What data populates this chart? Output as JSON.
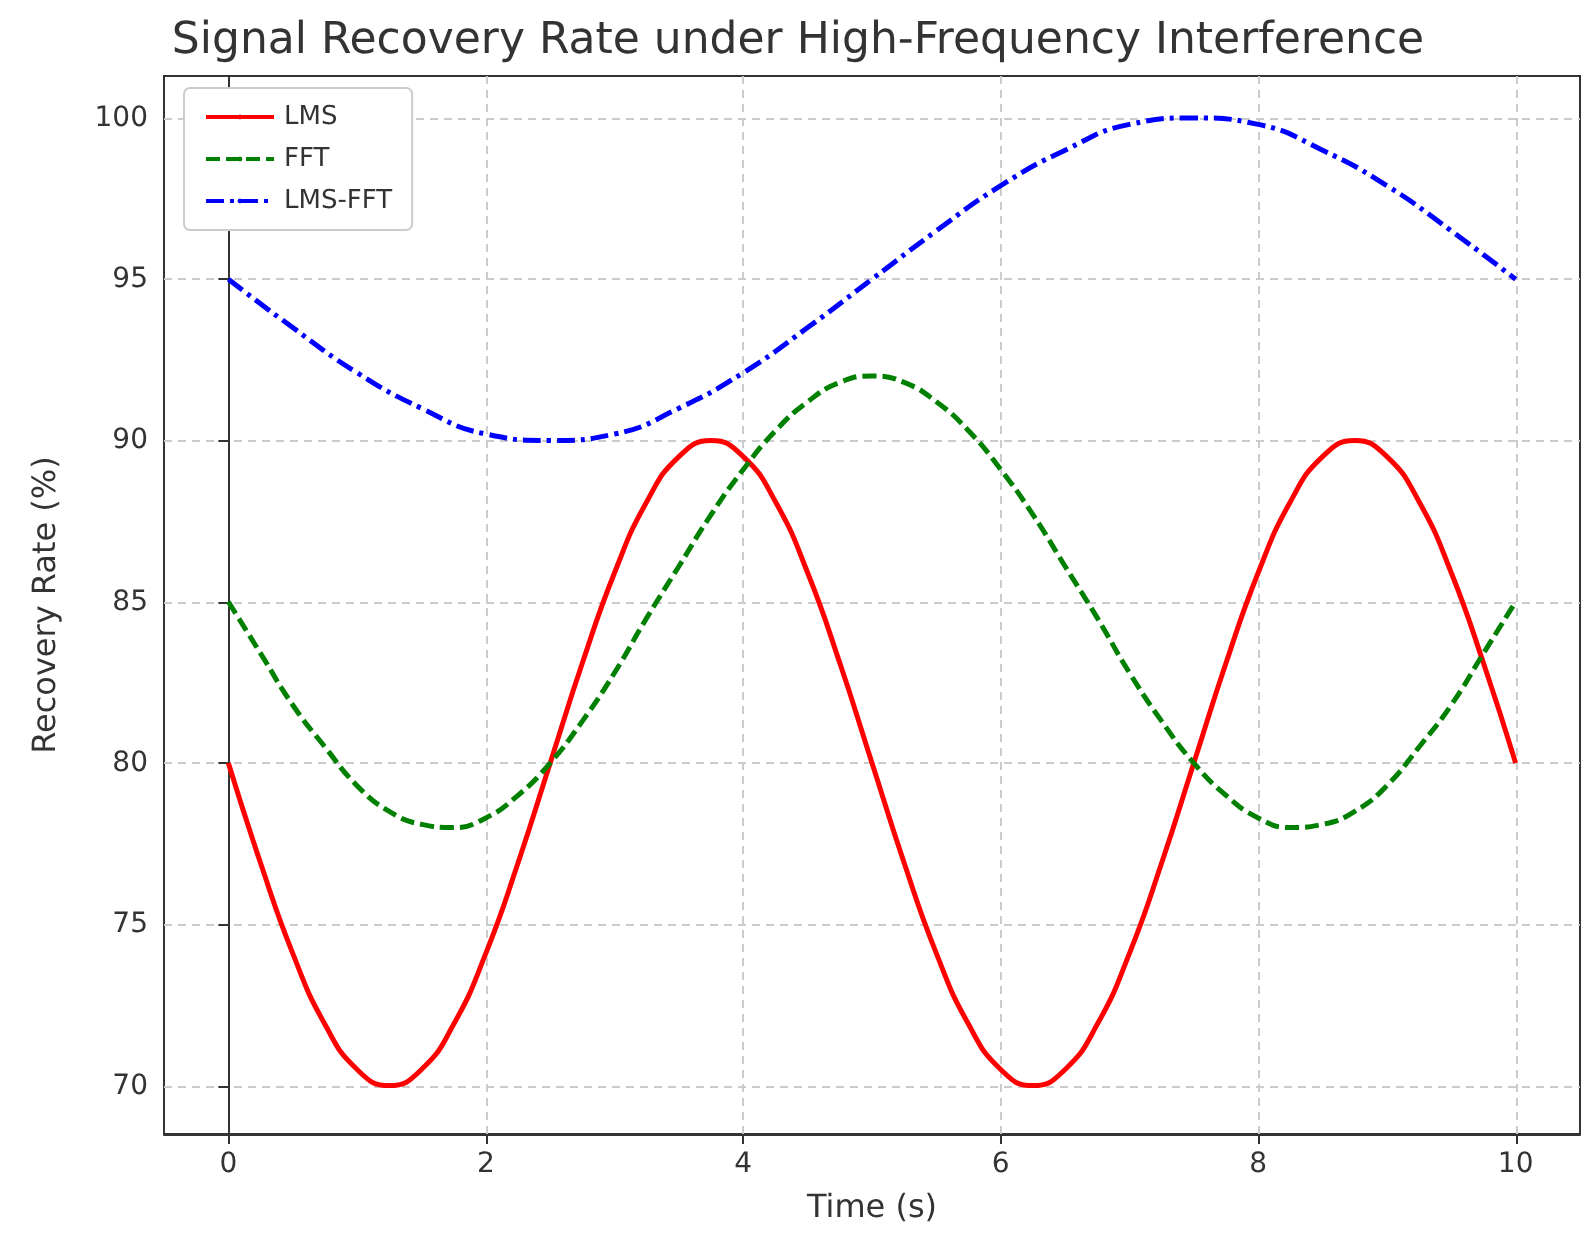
{
  "chart_data": {
    "type": "line",
    "title": "Signal Recovery Rate under High-Frequency Interference",
    "xlabel": "Time (s)",
    "ylabel": "Recovery Rate (%)",
    "xlim": [
      -0.5,
      10.5
    ],
    "xticks": [
      0,
      2,
      4,
      6,
      8,
      10
    ],
    "ylim": [
      68.5,
      101.3
    ],
    "yticks": [
      70,
      75,
      80,
      85,
      90,
      95,
      100
    ],
    "grid": true,
    "legend": "top left",
    "marker": "none",
    "series": [
      {
        "name": "LMS",
        "color": "#ff0000",
        "line_style": "solid",
        "x": [
          0,
          0.25,
          0.5,
          0.75,
          1,
          1.25,
          1.5,
          1.75,
          2,
          2.25,
          2.5,
          2.75,
          3,
          3.25,
          3.5,
          3.75,
          4,
          4.25,
          4.5,
          4.75,
          5,
          5.25,
          5.5,
          5.75,
          6,
          6.25,
          6.5,
          6.75,
          7,
          7.25,
          7.5,
          7.75,
          8,
          8.25,
          8.5,
          8.75,
          9,
          9.25,
          9.5,
          9.75,
          10
        ],
        "values": [
          80,
          76.9,
          74.1,
          71.9,
          70.5,
          70,
          70.5,
          71.9,
          74.1,
          76.9,
          80,
          83.1,
          85.9,
          88.1,
          89.5,
          90,
          89.5,
          88.1,
          85.9,
          83.1,
          80,
          76.9,
          74.1,
          71.9,
          70.5,
          70,
          70.5,
          71.9,
          74.1,
          76.9,
          80,
          83.1,
          85.9,
          88.1,
          89.5,
          90,
          89.5,
          88.1,
          85.9,
          83.1,
          80
        ]
      },
      {
        "name": "FFT",
        "color": "#008000",
        "line_style": "dashed",
        "x": [
          0,
          0.25,
          0.5,
          0.75,
          1,
          1.25,
          1.5,
          1.75,
          2,
          2.25,
          2.5,
          2.75,
          3,
          3.25,
          3.5,
          3.75,
          4,
          4.25,
          4.5,
          4.75,
          5,
          5.25,
          5.5,
          5.75,
          6,
          6.25,
          6.5,
          6.75,
          7,
          7.25,
          7.5,
          7.75,
          8,
          8.25,
          8.5,
          8.75,
          9,
          9.25,
          9.5,
          9.75,
          10
        ],
        "values": [
          85,
          83.4,
          81.8,
          80.5,
          79.3,
          78.5,
          78.1,
          78,
          78.3,
          79,
          80,
          81.3,
          82.8,
          84.5,
          86.1,
          87.7,
          89.1,
          90.3,
          91.2,
          91.8,
          92,
          91.8,
          91.2,
          90.3,
          89.1,
          87.7,
          86.1,
          84.5,
          82.8,
          81.3,
          80,
          79,
          78.3,
          78,
          78.1,
          78.5,
          79.3,
          80.5,
          81.8,
          83.4,
          85
        ]
      },
      {
        "name": "LMS-FFT",
        "color": "#0000ff",
        "line_style": "dashdot",
        "x": [
          0,
          0.5,
          1,
          1.5,
          2,
          2.5,
          3,
          3.5,
          4,
          4.5,
          5,
          5.5,
          6,
          6.5,
          7,
          7.5,
          8,
          8.5,
          9,
          9.5,
          10
        ],
        "values": [
          95,
          93.5,
          92.1,
          91,
          90.2,
          90,
          90.2,
          91,
          92.1,
          93.5,
          95,
          96.5,
          97.9,
          99,
          99.8,
          100,
          99.8,
          99,
          97.9,
          96.5,
          95
        ]
      }
    ]
  }
}
